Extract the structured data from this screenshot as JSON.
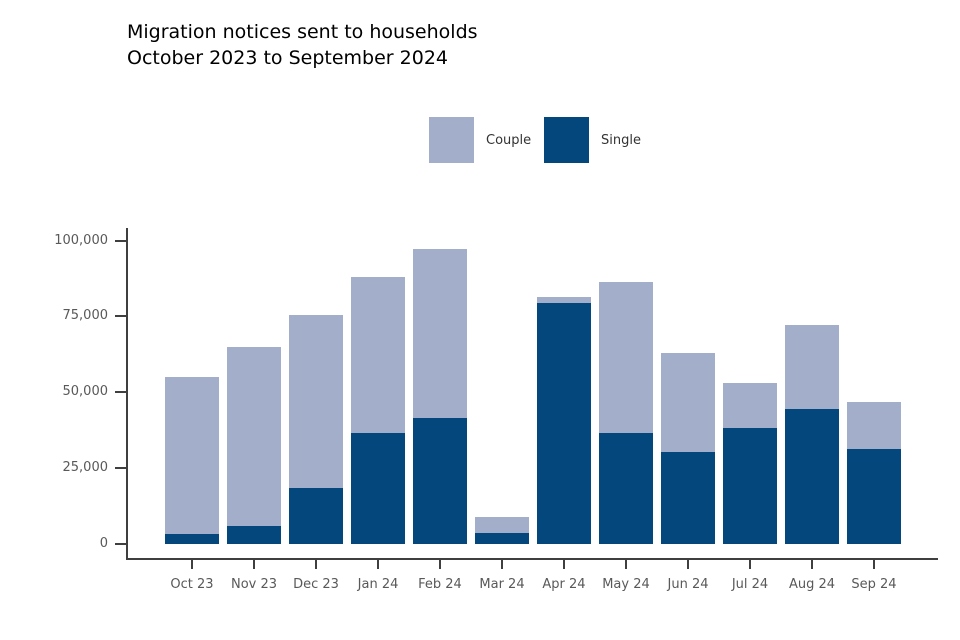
{
  "title": {
    "line1": "Migration notices sent to households",
    "line2": "October 2023 to September 2024"
  },
  "legend": [
    {
      "label": "Couple",
      "color": "#a2aeca"
    },
    {
      "label": "Single",
      "color": "#04477c"
    }
  ],
  "colors": {
    "axis": "#3f3f3f",
    "tick_label": "#595959",
    "title": "#000000"
  },
  "chart_data": {
    "type": "bar",
    "stacked": true,
    "title": "Migration notices sent to households October 2023 to September 2024",
    "categories": [
      "Oct 23",
      "Nov 23",
      "Dec 23",
      "Jan 24",
      "Feb 24",
      "Mar 24",
      "Apr 24",
      "May 24",
      "Jun 24",
      "Jul 24",
      "Aug 24",
      "Sep 24"
    ],
    "series": [
      {
        "name": "Single",
        "color": "#04477c",
        "values": [
          3400,
          6000,
          18500,
          36500,
          41500,
          3600,
          79500,
          36500,
          30300,
          38200,
          44400,
          31200
        ]
      },
      {
        "name": "Couple",
        "color": "#a2aeca",
        "values": [
          51600,
          59000,
          57000,
          51500,
          56000,
          5400,
          2000,
          50000,
          32700,
          15100,
          27800,
          15500
        ]
      }
    ],
    "totals": [
      55000,
      65000,
      75500,
      88000,
      97500,
      9000,
      81500,
      86500,
      63000,
      53300,
      72200,
      46700
    ],
    "xlabel": "",
    "ylabel": "",
    "ylim": [
      0,
      105000
    ],
    "yticks": [
      0,
      25000,
      50000,
      75000,
      100000
    ],
    "ytick_labels": [
      "0",
      "25,000",
      "50,000",
      "75,000",
      "100,000"
    ],
    "grid": false,
    "legend_position": "top-center"
  }
}
